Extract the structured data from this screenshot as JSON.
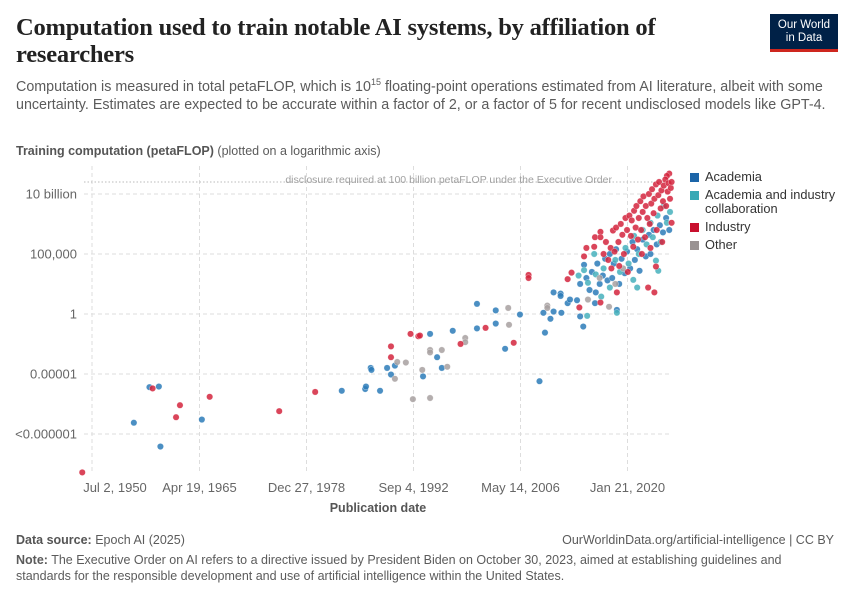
{
  "header": {
    "title": "Computation used to train notable AI systems, by affiliation of researchers",
    "subtitle_before": "Computation is measured in total petaFLOP, which is 10",
    "subtitle_sup": "15",
    "subtitle_after": " floating-point operations estimated from AI literature, albeit with some uncertainty. Estimates are expected to be accurate within a factor of 2, or a factor of 5 for recent undisclosed models like GPT-4.",
    "logo_line1": "Our World",
    "logo_line2": "in Data"
  },
  "footer": {
    "source_label": "Data source:",
    "source": "Epoch AI (2025)",
    "link": "OurWorldinData.org/artificial-intelligence | CC BY",
    "note_label": "Note:",
    "note": "The Executive Order on AI refers to a directive issued by President Biden on October 30, 2023, aimed at establishing guidelines and standards for the responsible development and use of artificial intelligence within the United States."
  },
  "chart_data": {
    "type": "scatter",
    "ylabel": "Training computation (petaFLOP)",
    "ylabel_note": "(plotted on a logarithmic axis)",
    "xlabel": "Publication date",
    "y_scale": "log",
    "grid": true,
    "legend_position": "right",
    "x_ticks": [
      {
        "label": "Jul 2, 1950",
        "year": 1950.5
      },
      {
        "label": "Apr 19, 1965",
        "year": 1965.3
      },
      {
        "label": "Dec 27, 1978",
        "year": 1978.99
      },
      {
        "label": "Sep 4, 1992",
        "year": 1992.68
      },
      {
        "label": "May 14, 2006",
        "year": 2006.37
      },
      {
        "label": "Jan 21, 2020",
        "year": 2020.06
      }
    ],
    "y_ticks": [
      {
        "label": "10 billion",
        "value": 10000000000.0
      },
      {
        "label": "100,000",
        "value": 100000.0
      },
      {
        "label": "1",
        "value": 1
      },
      {
        "label": "0.00001",
        "value": 1e-05
      },
      {
        "label": "<0.000001",
        "value": 1e-10
      }
    ],
    "threshold": {
      "value": 100000000000.0,
      "label": "disclosure required at 100 billion petaFLOP under the Executive Order"
    },
    "series": [
      {
        "name": "Academia",
        "color": "#2b7bb9",
        "legend_color": "#1c65a8",
        "points": [
          [
            1956.9,
            8.7e-10
          ],
          [
            1958.9,
            8e-07
          ],
          [
            1960.1,
            9e-07
          ],
          [
            1960.3,
            9e-12
          ],
          [
            1965.6,
            1.6e-09
          ],
          [
            1983.5,
            4e-07
          ],
          [
            1986.5,
            5.6e-07
          ],
          [
            1986.6,
            9e-07
          ],
          [
            1988.4,
            4e-07
          ],
          [
            1987.2,
            3.2e-05
          ],
          [
            1987.3,
            2.2e-05
          ],
          [
            1989.3,
            3.2e-05
          ],
          [
            1989.8,
            9e-06
          ],
          [
            1990.3,
            5e-05
          ],
          [
            1994.8,
            0.022
          ],
          [
            1993.9,
            6.3e-06
          ],
          [
            1995.7,
            0.00025
          ],
          [
            1996.3,
            3.2e-05
          ],
          [
            1997.7,
            0.04
          ],
          [
            2000.8,
            7
          ],
          [
            2000.8,
            0.063
          ],
          [
            2003.2,
            2
          ],
          [
            2003.2,
            0.16
          ],
          [
            2004.4,
            0.00126
          ],
          [
            2006.3,
            0.9
          ],
          [
            2008.8,
            2.5e-06
          ],
          [
            2009.3,
            1.26
          ],
          [
            2009.5,
            0.028
          ],
          [
            2010.2,
            0.4
          ],
          [
            2010.6,
            1.6
          ],
          [
            2010.6,
            63
          ],
          [
            2011.5,
            50
          ],
          [
            2011.5,
            32
          ],
          [
            2011.6,
            1.26
          ],
          [
            2012.4,
            8
          ],
          [
            2012.7,
            16
          ],
          [
            2013.6,
            14
          ],
          [
            2014.0,
            0.63
          ],
          [
            2014.4,
            0.09
          ],
          [
            2014.5,
            12600.0
          ],
          [
            2015.9,
            8
          ],
          [
            2018.7,
            2.2
          ],
          [
            2014.0,
            320
          ],
          [
            2014.8,
            1000.0
          ],
          [
            2015.2,
            100
          ],
          [
            2015.5,
            3200.0
          ],
          [
            2016.0,
            63
          ],
          [
            2016.2,
            16000.0
          ],
          [
            2016.5,
            320
          ],
          [
            2016.9,
            1600.0
          ],
          [
            2017.2,
            40000.0
          ],
          [
            2017.5,
            630
          ],
          [
            2017.8,
            100000.0
          ],
          [
            2018.1,
            1000.0
          ],
          [
            2018.3,
            16000.0
          ],
          [
            2018.6,
            250000.0
          ],
          [
            2019.0,
            320
          ],
          [
            2019.3,
            40000.0
          ],
          [
            2019.7,
            2500.0
          ],
          [
            2020.0,
            160000.0
          ],
          [
            2020.4,
            6300.0
          ],
          [
            2020.7,
            1000000.0
          ],
          [
            2021.0,
            32000.0
          ],
          [
            2021.3,
            250000.0
          ],
          [
            2021.6,
            4000.0
          ],
          [
            2022.0,
            1600000.0
          ],
          [
            2022.4,
            63000.0
          ],
          [
            2022.8,
            4000000.0
          ],
          [
            2023.0,
            100000.0
          ],
          [
            2023.4,
            10000000.0
          ],
          [
            2023.8,
            630000.0
          ],
          [
            2024.2,
            25000000.0
          ],
          [
            2024.6,
            6300000.0
          ],
          [
            2025.0,
            100000000.0
          ],
          [
            2025.4,
            10000000.0
          ]
        ]
      },
      {
        "name": "Academia and industry collaboration",
        "color": "#45b0bc",
        "legend_color": "#38a9b5",
        "points": [
          [
            2014.9,
            0.7
          ],
          [
            2014.5,
            4500.0
          ],
          [
            2013.8,
            1600.0
          ],
          [
            2015.8,
            100000.0
          ],
          [
            2016.7,
            28
          ],
          [
            2018.7,
            1.26
          ],
          [
            2020.8,
            700
          ],
          [
            2021.3,
            160
          ],
          [
            2023.7,
            28000.0
          ],
          [
            2015.0,
            400
          ],
          [
            2016.0,
            2000.0
          ],
          [
            2017.0,
            6300.0
          ],
          [
            2017.8,
            160
          ],
          [
            2018.5,
            32000.0
          ],
          [
            2019.1,
            3200.0
          ],
          [
            2019.8,
            320000.0
          ],
          [
            2020.2,
            16000.0
          ],
          [
            2020.9,
            3200000.0
          ],
          [
            2021.5,
            100000.0
          ],
          [
            2022.0,
            10000000.0
          ],
          [
            2022.5,
            630000.0
          ],
          [
            2023.0,
            40000000.0
          ],
          [
            2023.3,
            2500000.0
          ],
          [
            2023.9,
            160000000.0
          ],
          [
            2024.3,
            1000000.0
          ],
          [
            2024.7,
            1000000000.0
          ],
          [
            2025.1,
            40000000.0
          ],
          [
            2025.5,
            320000000.0
          ],
          [
            2024.0,
            4000.0
          ]
        ]
      },
      {
        "name": "Industry",
        "color": "#d3253d",
        "legend_color": "#c8102e",
        "points": [
          [
            1950.3,
            6.3e-14
          ],
          [
            1959.3,
            6.3e-07
          ],
          [
            1962.3,
            2.5e-09
          ],
          [
            1962.8,
            2.5e-08
          ],
          [
            1966.6,
            1.26e-07
          ],
          [
            1975.5,
            8e-09
          ],
          [
            1980.1,
            3.2e-07
          ],
          [
            1989.8,
            0.002
          ],
          [
            1989.8,
            0.00025
          ],
          [
            1992.3,
            0.022
          ],
          [
            1993.3,
            0.014
          ],
          [
            1993.5,
            0.016
          ],
          [
            1998.7,
            0.0032
          ],
          [
            2001.9,
            0.07
          ],
          [
            2005.5,
            0.004
          ],
          [
            2007.4,
            1800.0
          ],
          [
            2007.4,
            1000.0
          ],
          [
            2012.4,
            800
          ],
          [
            2012.9,
            2800.0
          ],
          [
            2013.9,
            3.5
          ],
          [
            2014.5,
            63000.0
          ],
          [
            2014.8,
            320000.0
          ],
          [
            2015.8,
            400000.0
          ],
          [
            2015.9,
            2500000.0
          ],
          [
            2016.6,
            7000000.0
          ],
          [
            2016.6,
            2500000.0
          ],
          [
            2018.2,
            9000000.0
          ],
          [
            2016.6,
            9
          ],
          [
            2018.7,
            63
          ],
          [
            2022.7,
            160
          ],
          [
            2023.5,
            63
          ],
          [
            2023.7,
            9000.0
          ],
          [
            2025.4,
            500000000000.0
          ],
          [
            2025.1,
            320000000000.0
          ],
          [
            2025.7,
            40000000.0
          ],
          [
            2017.0,
            100000.0
          ],
          [
            2017.3,
            1000000.0
          ],
          [
            2017.6,
            32000.0
          ],
          [
            2017.9,
            320000.0
          ],
          [
            2018.0,
            6300.0
          ],
          [
            2018.4,
            160000.0
          ],
          [
            2018.6,
            16000000.0
          ],
          [
            2018.9,
            1000000.0
          ],
          [
            2019.0,
            10000.0
          ],
          [
            2019.2,
            32000000.0
          ],
          [
            2019.4,
            4000000.0
          ],
          [
            2019.6,
            100000.0
          ],
          [
            2019.8,
            100000000.0
          ],
          [
            2020.0,
            10000000.0
          ],
          [
            2020.1,
            3200.0
          ],
          [
            2020.3,
            160000000.0
          ],
          [
            2020.5,
            3200000.0
          ],
          [
            2020.6,
            63000000.0
          ],
          [
            2020.8,
            400000.0
          ],
          [
            2020.9,
            400000000.0
          ],
          [
            2021.1,
            16000000.0
          ],
          [
            2021.2,
            1000000000.0
          ],
          [
            2021.4,
            1600000.0
          ],
          [
            2021.5,
            100000000.0
          ],
          [
            2021.7,
            2500000000.0
          ],
          [
            2021.8,
            10000000.0
          ],
          [
            2022.0,
            320000000.0
          ],
          [
            2022.1,
            6300000000.0
          ],
          [
            2022.3,
            2500000.0
          ],
          [
            2022.4,
            1000000000.0
          ],
          [
            2022.6,
            100000000.0
          ],
          [
            2022.8,
            10000000000.0
          ],
          [
            2022.9,
            32000000.0
          ],
          [
            2023.1,
            1600000000.0
          ],
          [
            2023.2,
            25000000000.0
          ],
          [
            2023.4,
            250000000.0
          ],
          [
            2023.5,
            4000000000.0
          ],
          [
            2023.7,
            63000000000.0
          ],
          [
            2023.8,
            10000000.0
          ],
          [
            2024.0,
            8000000000.0
          ],
          [
            2024.1,
            100000000000.0
          ],
          [
            2024.3,
            630000000.0
          ],
          [
            2024.4,
            20000000000.0
          ],
          [
            2024.6,
            2500000000.0
          ],
          [
            2024.7,
            50000000000.0
          ],
          [
            2024.9,
            160000000000.0
          ],
          [
            2025.0,
            1000000000.0
          ],
          [
            2025.2,
            16000000000.0
          ],
          [
            2025.3,
            80000000000.0
          ],
          [
            2025.5,
            4000000000.0
          ],
          [
            2025.6,
            32000000000.0
          ],
          [
            2025.7,
            100000000000.0
          ],
          [
            2024.5,
            1000000.0
          ],
          [
            2023.0,
            320000.0
          ],
          [
            2021.9,
            100000.0
          ]
        ]
      },
      {
        "name": "Other",
        "color": "#a7a0a0",
        "legend_color": "#9a9393",
        "points": [
          [
            1990.6,
            0.0001
          ],
          [
            1990.3,
            4e-06
          ],
          [
            1991.7,
            9e-05
          ],
          [
            1992.6,
            8e-08
          ],
          [
            1994.8,
            0.001
          ],
          [
            1994.8,
            0.00063
          ],
          [
            1993.8,
            2.2e-05
          ],
          [
            1994.8,
            1e-07
          ],
          [
            1996.3,
            0.001
          ],
          [
            1997.0,
            4e-05
          ],
          [
            1999.3,
            0.01
          ],
          [
            1999.3,
            0.0045
          ],
          [
            2004.8,
            3.2
          ],
          [
            2004.9,
            0.126
          ],
          [
            2009.8,
            5
          ],
          [
            2009.8,
            3.2
          ],
          [
            2017.7,
            4
          ],
          [
            2015.0,
            16
          ],
          [
            2016.5,
            1000.0
          ],
          [
            2018.5,
            320
          ],
          [
            2019.5,
            6300.0
          ]
        ]
      }
    ]
  }
}
